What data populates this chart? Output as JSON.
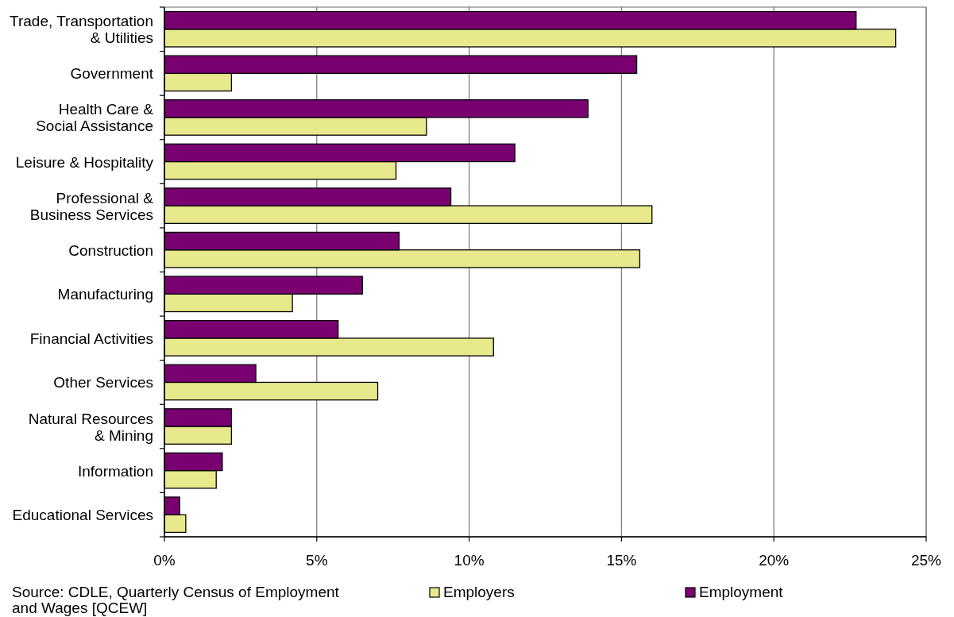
{
  "chart_data": {
    "type": "bar",
    "orientation": "horizontal",
    "categories": [
      "Trade, Transportation & Utilities",
      "Government",
      "Health Care & Social Assistance",
      "Leisure & Hospitality",
      "Professional & Business Services",
      "Construction",
      "Manufacturing",
      "Financial Activities",
      "Other Services",
      "Natural Resources & Mining",
      "Information",
      "Educational Services"
    ],
    "series": [
      {
        "name": "Employers",
        "color": "#e8e88c",
        "values": [
          24.0,
          2.2,
          8.6,
          7.6,
          16.0,
          15.6,
          4.2,
          10.8,
          7.0,
          2.2,
          1.7,
          0.7
        ]
      },
      {
        "name": "Employment",
        "color": "#7a0072",
        "values": [
          22.7,
          15.5,
          13.9,
          11.5,
          9.4,
          7.7,
          6.5,
          5.7,
          3.0,
          2.2,
          1.9,
          0.5
        ]
      }
    ],
    "xlim": [
      0,
      25
    ],
    "xticks": [
      {
        "value": 0,
        "label": "0%"
      },
      {
        "value": 5,
        "label": "5%"
      },
      {
        "value": 10,
        "label": "10%"
      },
      {
        "value": 15,
        "label": "15%"
      },
      {
        "value": 20,
        "label": "20%"
      },
      {
        "value": 25,
        "label": "25%"
      }
    ],
    "grid": "x",
    "legend": "bottom",
    "annotations": [
      "Source: CDLE, Quarterly Census of Employment and Wages [QCEW]"
    ]
  }
}
